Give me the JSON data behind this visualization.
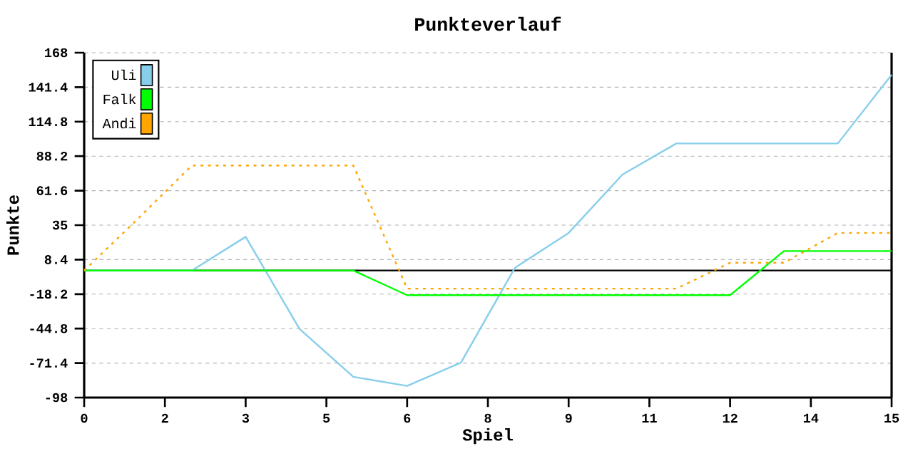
{
  "chart_data": {
    "type": "line",
    "title": "Punkteverlauf",
    "xlabel": "Spiel",
    "ylabel": "Punkte",
    "x": [
      0,
      1,
      2,
      3,
      4,
      5,
      6,
      7,
      8,
      9,
      10,
      11,
      12,
      13,
      14,
      15
    ],
    "series": [
      {
        "name": "Uli",
        "color": "#87ceeb",
        "values": [
          0,
          0,
          0,
          26,
          -45,
          -82,
          -89,
          -71,
          2,
          29,
          74,
          98,
          98,
          98,
          98,
          151
        ]
      },
      {
        "name": "Falk",
        "color": "#00ff00",
        "values": [
          0,
          0,
          0,
          0,
          0,
          0,
          -19,
          -19,
          -19,
          -19,
          -19,
          -19,
          -19,
          15,
          15,
          15
        ]
      },
      {
        "name": "Andi",
        "color": "#ffa500",
        "line_style": "dotted",
        "values": [
          0,
          40,
          81,
          81,
          81,
          81,
          -14,
          -14,
          -14,
          -14,
          -14,
          -14,
          6,
          6,
          29,
          29
        ]
      }
    ],
    "xlim": [
      0,
      15
    ],
    "ylim": [
      -98,
      168
    ],
    "xticks": [
      0,
      {
        "value": 1.5,
        "label": "2"
      },
      3,
      {
        "value": 4.5,
        "label": "5"
      },
      6,
      {
        "value": 7.5,
        "label": "8"
      },
      9,
      {
        "value": 10.5,
        "label": "11"
      },
      12,
      {
        "value": 13.5,
        "label": "14"
      },
      15
    ],
    "yticks": [
      -98,
      -71.4,
      -44.8,
      -18.2,
      8.4,
      35,
      61.6,
      88.2,
      114.8,
      141.4,
      168
    ],
    "ref_lines": [
      {
        "axis": "y",
        "value": 0,
        "color": "#000000"
      }
    ],
    "grid": "y",
    "legend": "top left",
    "marker": "none",
    "line_style": "solid"
  }
}
